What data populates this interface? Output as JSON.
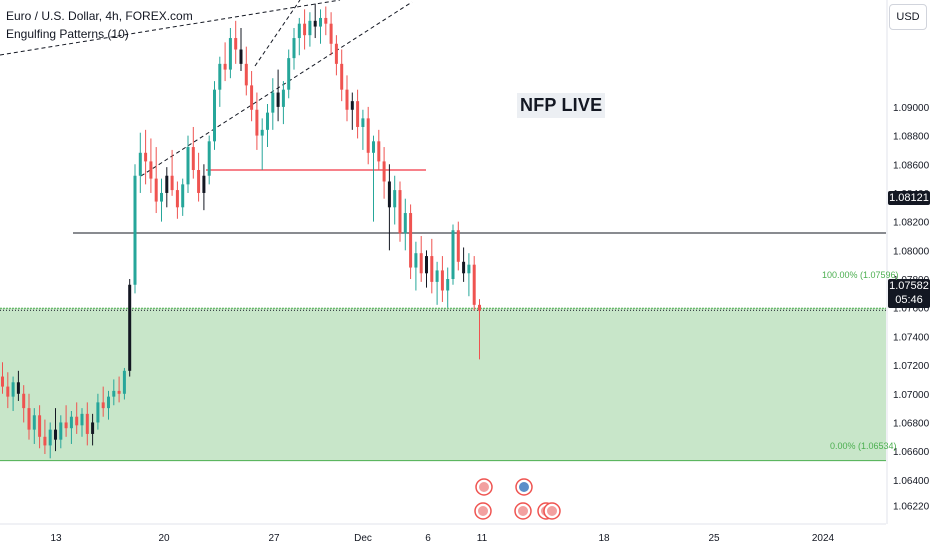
{
  "legend": {
    "symbol_line": "Euro / U.S. Dollar, 4h, FOREX.com",
    "indicator_line": "Engulfing Patterns (10)"
  },
  "currency_button": "USD",
  "annotation": "NFP LIVE",
  "price_tags": {
    "horizontal_line": "1.08121",
    "current_price": "1.07582",
    "countdown": "05:46"
  },
  "fib_labels": {
    "top": "100.00% (1.07596)",
    "bottom": "0.00% (1.06534)"
  },
  "colors": {
    "bull": "#26a69a",
    "bear": "#ef5350",
    "candle_dark": "#131722",
    "zone_fill": "#c8e6c9",
    "zone_border": "#4caf50",
    "support_line": "#f23645"
  },
  "chart_data": {
    "type": "candlestick",
    "symbol": "EURUSD",
    "timeframe": "4h",
    "y_axis_ticks": [
      "1.09000",
      "1.08800",
      "1.08600",
      "1.08400",
      "1.08200",
      "1.08000",
      "1.07800",
      "1.07600",
      "1.07400",
      "1.07200",
      "1.07000",
      "1.06800",
      "1.06600",
      "1.06400",
      "1.06220"
    ],
    "x_axis_ticks": [
      "13",
      "20",
      "27",
      "Dec",
      "6",
      "11",
      "18",
      "25",
      "2024"
    ],
    "ylim": [
      1.0612,
      1.0955
    ],
    "horizontal_line": 1.08121,
    "current_price": 1.07582,
    "fib_zone": {
      "top": 1.07596,
      "bottom": 1.06534
    },
    "support_segment_price": 1.0856,
    "candles": [
      [
        1.0712,
        1.0722,
        1.07,
        1.0705
      ],
      [
        1.0705,
        1.0715,
        1.069,
        1.0698
      ],
      [
        1.0698,
        1.0712,
        1.0688,
        1.0708
      ],
      [
        1.0708,
        1.0716,
        1.0695,
        1.07
      ],
      [
        1.07,
        1.0706,
        1.068,
        1.069
      ],
      [
        1.069,
        1.07,
        1.0668,
        1.0675
      ],
      [
        1.0675,
        1.069,
        1.0665,
        1.0685
      ],
      [
        1.0685,
        1.0692,
        1.0662,
        1.067
      ],
      [
        1.067,
        1.0682,
        1.0658,
        1.0664
      ],
      [
        1.0664,
        1.068,
        1.0655,
        1.0675
      ],
      [
        1.0675,
        1.069,
        1.066,
        1.0668
      ],
      [
        1.0668,
        1.0685,
        1.0662,
        1.068
      ],
      [
        1.068,
        1.0692,
        1.067,
        1.0676
      ],
      [
        1.0676,
        1.0688,
        1.0665,
        1.0684
      ],
      [
        1.0684,
        1.0694,
        1.0672,
        1.0678
      ],
      [
        1.0678,
        1.069,
        1.067,
        1.0686
      ],
      [
        1.0686,
        1.0694,
        1.0664,
        1.0672
      ],
      [
        1.0672,
        1.0686,
        1.0664,
        1.068
      ],
      [
        1.068,
        1.07,
        1.0675,
        1.0694
      ],
      [
        1.0694,
        1.0705,
        1.0684,
        1.069
      ],
      [
        1.069,
        1.0702,
        1.0682,
        1.0698
      ],
      [
        1.0698,
        1.071,
        1.0692,
        1.0702
      ],
      [
        1.0702,
        1.0712,
        1.0694,
        1.07
      ],
      [
        1.07,
        1.0718,
        1.0696,
        1.0716
      ],
      [
        1.0716,
        1.078,
        1.0712,
        1.0776
      ],
      [
        1.0776,
        1.086,
        1.077,
        1.0852
      ],
      [
        1.0852,
        1.0882,
        1.084,
        1.0868
      ],
      [
        1.0868,
        1.0884,
        1.0846,
        1.0862
      ],
      [
        1.0862,
        1.0878,
        1.084,
        1.085
      ],
      [
        1.085,
        1.0872,
        1.0826,
        1.0834
      ],
      [
        1.0834,
        1.085,
        1.082,
        1.084
      ],
      [
        1.084,
        1.0858,
        1.083,
        1.0852
      ],
      [
        1.0852,
        1.087,
        1.0838,
        1.0842
      ],
      [
        1.0842,
        1.0848,
        1.0822,
        1.083
      ],
      [
        1.083,
        1.085,
        1.0824,
        1.0846
      ],
      [
        1.0846,
        1.088,
        1.084,
        1.0872
      ],
      [
        1.0872,
        1.0886,
        1.085,
        1.0856
      ],
      [
        1.0856,
        1.0868,
        1.0834,
        1.084
      ],
      [
        1.084,
        1.086,
        1.0828,
        1.0852
      ],
      [
        1.0852,
        1.088,
        1.0846,
        1.0876
      ],
      [
        1.0876,
        1.0918,
        1.087,
        1.0912
      ],
      [
        1.0912,
        1.0935,
        1.09,
        1.093
      ],
      [
        1.093,
        1.0945,
        1.0918,
        1.0926
      ],
      [
        1.0926,
        1.0955,
        1.092,
        1.0948
      ],
      [
        1.0948,
        1.096,
        1.093,
        1.094
      ],
      [
        1.094,
        1.0955,
        1.0925,
        1.093
      ],
      [
        1.093,
        1.0942,
        1.0908,
        1.0915
      ],
      [
        1.0915,
        1.0925,
        1.089,
        1.0898
      ],
      [
        1.0898,
        1.091,
        1.087,
        1.088
      ],
      [
        1.088,
        1.0892,
        1.0856,
        1.0884
      ],
      [
        1.0884,
        1.0902,
        1.0872,
        1.0896
      ],
      [
        1.0896,
        1.092,
        1.0884,
        1.091
      ],
      [
        1.091,
        1.0926,
        1.089,
        1.09
      ],
      [
        1.09,
        1.0918,
        1.0888,
        1.0912
      ],
      [
        1.0912,
        1.094,
        1.0906,
        1.0934
      ],
      [
        1.0934,
        1.0955,
        1.0926,
        1.0948
      ],
      [
        1.0948,
        1.0962,
        1.0936,
        1.0958
      ],
      [
        1.0958,
        1.0968,
        1.094,
        1.095
      ],
      [
        1.095,
        1.0966,
        1.0942,
        1.096
      ],
      [
        1.096,
        1.0972,
        1.0948,
        1.0956
      ],
      [
        1.0956,
        1.0968,
        1.0944,
        1.0962
      ],
      [
        1.0962,
        1.097,
        1.095,
        1.0958
      ],
      [
        1.0958,
        1.0966,
        1.0936,
        1.0944
      ],
      [
        1.0944,
        1.095,
        1.0922,
        1.093
      ],
      [
        1.093,
        1.094,
        1.0904,
        1.0912
      ],
      [
        1.0912,
        1.0922,
        1.089,
        1.0898
      ],
      [
        1.0898,
        1.091,
        1.0884,
        1.0904
      ],
      [
        1.0904,
        1.0912,
        1.0878,
        1.0886
      ],
      [
        1.0886,
        1.0898,
        1.087,
        1.0892
      ],
      [
        1.0892,
        1.09,
        1.086,
        1.0868
      ],
      [
        1.0868,
        1.088,
        1.082,
        1.0876
      ],
      [
        1.0876,
        1.0884,
        1.0856,
        1.0862
      ],
      [
        1.0862,
        1.0872,
        1.0836,
        1.0848
      ],
      [
        1.0848,
        1.086,
        1.08,
        1.083
      ],
      [
        1.083,
        1.0852,
        1.0818,
        1.0842
      ],
      [
        1.0842,
        1.0848,
        1.0806,
        1.0812
      ],
      [
        1.0812,
        1.0836,
        1.08,
        1.0826
      ],
      [
        1.0826,
        1.0832,
        1.078,
        1.0788
      ],
      [
        1.0788,
        1.0806,
        1.0772,
        1.0798
      ],
      [
        1.0798,
        1.081,
        1.0778,
        1.0784
      ],
      [
        1.0784,
        1.08,
        1.0774,
        1.0796
      ],
      [
        1.0796,
        1.0808,
        1.077,
        1.0778
      ],
      [
        1.0778,
        1.0792,
        1.0762,
        1.0786
      ],
      [
        1.0786,
        1.0796,
        1.0764,
        1.0772
      ],
      [
        1.0772,
        1.0788,
        1.076,
        1.078
      ],
      [
        1.078,
        1.0818,
        1.0776,
        1.0814
      ],
      [
        1.0814,
        1.082,
        1.0786,
        1.0792
      ],
      [
        1.0792,
        1.0802,
        1.0778,
        1.0784
      ],
      [
        1.0784,
        1.0798,
        1.0768,
        1.079
      ],
      [
        1.079,
        1.0796,
        1.0758,
        1.0762
      ],
      [
        1.0762,
        1.0766,
        1.0724,
        1.0758
      ]
    ]
  }
}
